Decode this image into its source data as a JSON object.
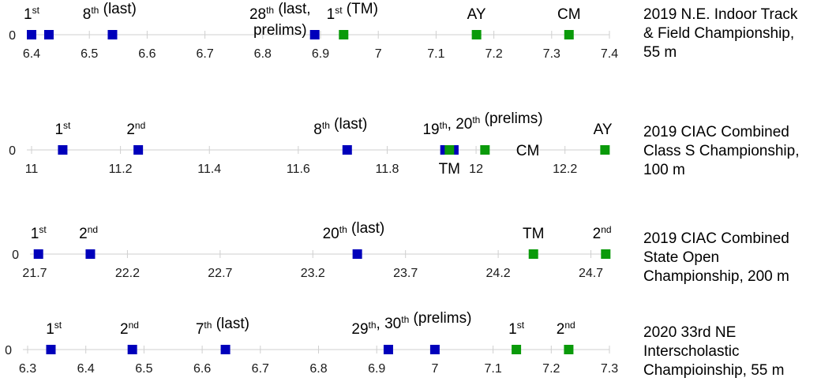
{
  "colors": {
    "blue": "#0000bb",
    "green": "#0a9a0a"
  },
  "chart_data": [
    {
      "type": "scatter",
      "title": [
        "2019 N.E. Indoor Track",
        "& Field Championship,",
        "55 m"
      ],
      "xlim": [
        6.4,
        7.4
      ],
      "ticks": [
        6.4,
        6.5,
        6.6,
        6.7,
        6.8,
        6.9,
        7,
        7.1,
        7.2,
        7.3,
        7.4
      ],
      "tick_labels": [
        "6.4",
        "6.5",
        "6.6",
        "6.7",
        "6.8",
        "6.9",
        "7",
        "7.1",
        "7.2",
        "7.3",
        "7.4"
      ],
      "y_label": "0",
      "series": [
        {
          "name": "field",
          "color": "blue",
          "x": [
            6.4,
            6.43,
            6.54,
            6.89
          ]
        },
        {
          "name": "team",
          "color": "green",
          "x": [
            6.94,
            7.17,
            7.33
          ]
        }
      ],
      "annotations": [
        {
          "x": 6.4,
          "row": "above",
          "parts": [
            {
              "t": "1"
            },
            {
              "t": "st",
              "sup": true
            }
          ]
        },
        {
          "x": 6.535,
          "row": "above",
          "parts": [
            {
              "t": "8"
            },
            {
              "t": "th",
              "sup": true
            },
            {
              "t": " (last)"
            }
          ]
        },
        {
          "x": 6.83,
          "row": "above",
          "parts": [
            {
              "t": "28"
            },
            {
              "t": "th",
              "sup": true
            },
            {
              "t": " (last,"
            }
          ]
        },
        {
          "x": 6.83,
          "row": "above2",
          "parts": [
            {
              "t": "prelims)"
            }
          ]
        },
        {
          "x": 6.955,
          "row": "above",
          "parts": [
            {
              "t": "1"
            },
            {
              "t": "st",
              "sup": true
            },
            {
              "t": " (TM)"
            }
          ]
        },
        {
          "x": 7.17,
          "row": "above",
          "parts": [
            {
              "t": "AY"
            }
          ]
        },
        {
          "x": 7.33,
          "row": "above",
          "parts": [
            {
              "t": "CM"
            }
          ]
        }
      ]
    },
    {
      "type": "scatter",
      "title": [
        "2019 CIAC Combined",
        "Class S Championship,",
        "100 m"
      ],
      "xlim": [
        11.0,
        12.3
      ],
      "ticks": [
        11,
        11.2,
        11.4,
        11.6,
        11.8,
        12,
        12.2
      ],
      "tick_labels": [
        "11",
        "11.2",
        "11.4",
        "11.6",
        "11.8",
        "12",
        "12.2"
      ],
      "y_label": "0",
      "series": [
        {
          "name": "field",
          "color": "blue",
          "x": [
            11.07,
            11.24,
            11.71,
            11.93,
            11.95
          ]
        },
        {
          "name": "team",
          "color": "green",
          "x": [
            11.94,
            12.02,
            12.29
          ]
        }
      ],
      "annotations": [
        {
          "x": 11.07,
          "row": "above",
          "parts": [
            {
              "t": "1"
            },
            {
              "t": "st",
              "sup": true
            }
          ]
        },
        {
          "x": 11.235,
          "row": "above",
          "parts": [
            {
              "t": "2"
            },
            {
              "t": "nd",
              "sup": true
            }
          ]
        },
        {
          "x": 11.695,
          "row": "above",
          "parts": [
            {
              "t": "8"
            },
            {
              "t": "th",
              "sup": true
            },
            {
              "t": " (last)"
            }
          ]
        },
        {
          "x": 12.015,
          "row": "above",
          "parts": [
            {
              "t": "19"
            },
            {
              "t": "th",
              "sup": true
            },
            {
              "t": ", 20"
            },
            {
              "t": "th",
              "sup": true
            },
            {
              "t": " (prelims)"
            }
          ]
        },
        {
          "x": 12.285,
          "row": "above",
          "parts": [
            {
              "t": "AY"
            }
          ]
        },
        {
          "x": 11.94,
          "row": "below",
          "parts": [
            {
              "t": "TM"
            }
          ]
        },
        {
          "x": 12.09,
          "row": "inline",
          "parts": [
            {
              "t": "CM"
            }
          ]
        }
      ]
    },
    {
      "type": "scatter",
      "title": [
        "2019 CIAC Combined",
        "State Open",
        "Championship, 200 m"
      ],
      "xlim": [
        21.7,
        24.8
      ],
      "ticks": [
        21.7,
        22.2,
        22.7,
        23.2,
        23.7,
        24.2,
        24.7
      ],
      "tick_labels": [
        "21.7",
        "22.2",
        "22.7",
        "23.2",
        "23.7",
        "24.2",
        "24.7"
      ],
      "y_label": "0",
      "series": [
        {
          "name": "field",
          "color": "blue",
          "x": [
            21.72,
            22.0,
            23.44
          ]
        },
        {
          "name": "team",
          "color": "green",
          "x": [
            24.39,
            24.78
          ]
        }
      ],
      "annotations": [
        {
          "x": 21.72,
          "row": "above",
          "parts": [
            {
              "t": "1"
            },
            {
              "t": "st",
              "sup": true
            }
          ]
        },
        {
          "x": 21.99,
          "row": "above",
          "parts": [
            {
              "t": "2"
            },
            {
              "t": "nd",
              "sup": true
            }
          ]
        },
        {
          "x": 23.42,
          "row": "above",
          "parts": [
            {
              "t": "20"
            },
            {
              "t": "th",
              "sup": true
            },
            {
              "t": " (last)"
            }
          ]
        },
        {
          "x": 24.39,
          "row": "above",
          "parts": [
            {
              "t": "TM"
            }
          ]
        },
        {
          "x": 24.76,
          "row": "above",
          "parts": [
            {
              "t": "2"
            },
            {
              "t": "nd",
              "sup": true
            }
          ]
        }
      ]
    },
    {
      "type": "scatter",
      "title": [
        "2020 33rd NE",
        "Interscholastic",
        "Champioinship, 55 m"
      ],
      "xlim": [
        6.3,
        7.3
      ],
      "ticks": [
        6.3,
        6.4,
        6.5,
        6.6,
        6.7,
        6.8,
        6.9,
        7,
        7.1,
        7.2,
        7.3
      ],
      "tick_labels": [
        "6.3",
        "6.4",
        "6.5",
        "6.6",
        "6.7",
        "6.8",
        "6.9",
        "7",
        "7.1",
        "7.2",
        "7.3"
      ],
      "y_label": "0",
      "series": [
        {
          "name": "field",
          "color": "blue",
          "x": [
            6.34,
            6.48,
            6.64,
            6.92,
            7.0
          ]
        },
        {
          "name": "team",
          "color": "green",
          "x": [
            7.14,
            7.23
          ]
        }
      ],
      "annotations": [
        {
          "x": 6.345,
          "row": "above",
          "parts": [
            {
              "t": "1"
            },
            {
              "t": "st",
              "sup": true
            }
          ]
        },
        {
          "x": 6.475,
          "row": "above",
          "parts": [
            {
              "t": "2"
            },
            {
              "t": "nd",
              "sup": true
            }
          ]
        },
        {
          "x": 6.635,
          "row": "above",
          "parts": [
            {
              "t": "7"
            },
            {
              "t": "th",
              "sup": true
            },
            {
              "t": " (last)"
            }
          ]
        },
        {
          "x": 6.96,
          "row": "above",
          "parts": [
            {
              "t": "29"
            },
            {
              "t": "th",
              "sup": true
            },
            {
              "t": ", 30"
            },
            {
              "t": "th",
              "sup": true
            },
            {
              "t": " (prelims)"
            }
          ]
        },
        {
          "x": 7.14,
          "row": "above",
          "parts": [
            {
              "t": "1"
            },
            {
              "t": "st",
              "sup": true
            }
          ]
        },
        {
          "x": 7.225,
          "row": "above",
          "parts": [
            {
              "t": "2"
            },
            {
              "t": "nd",
              "sup": true
            }
          ]
        }
      ]
    }
  ]
}
